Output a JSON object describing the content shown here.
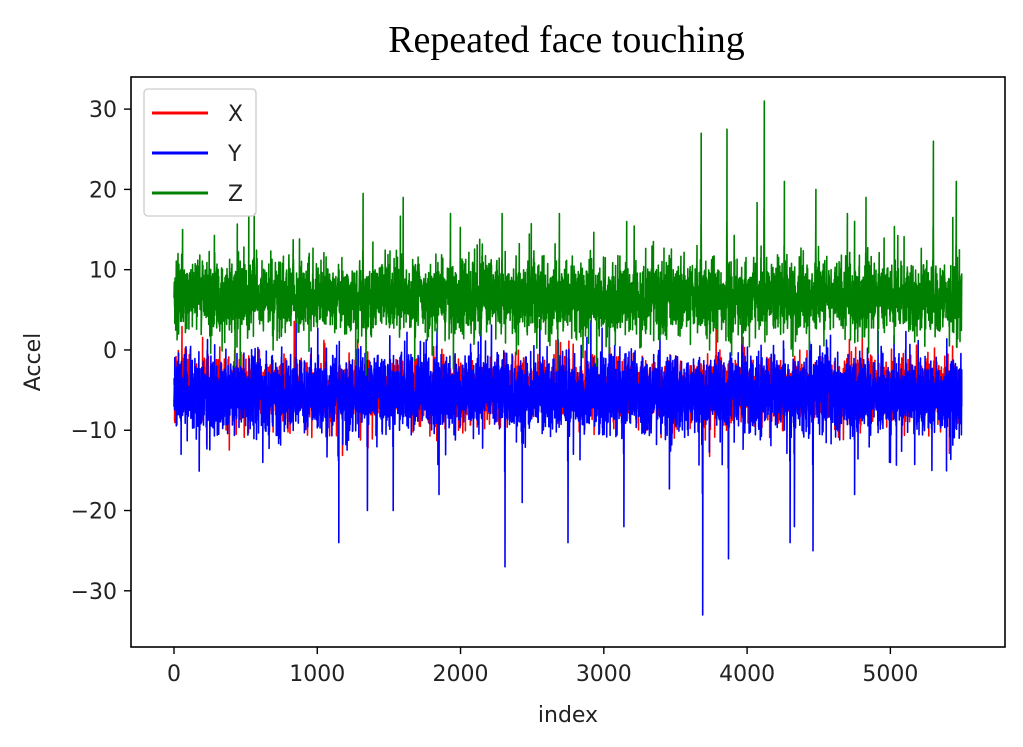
{
  "chart_data": {
    "type": "line",
    "title": "Repeated face touching",
    "xlabel": "index",
    "ylabel": "Accel",
    "xlim": [
      -300,
      5800
    ],
    "ylim": [
      -37,
      34
    ],
    "xticks": [
      0,
      1000,
      2000,
      3000,
      4000,
      5000
    ],
    "xtick_labels": [
      "0",
      "1000",
      "2000",
      "3000",
      "4000",
      "5000"
    ],
    "yticks": [
      30,
      20,
      10,
      0,
      -10,
      -20,
      -30
    ],
    "ytick_labels": [
      "30",
      "20",
      "10",
      "0",
      "−10",
      "−20",
      "−30"
    ],
    "grid": false,
    "legend_position": "top-left",
    "n_points": 5500,
    "series": [
      {
        "name": "X",
        "color": "#ff0000",
        "baseline": -5,
        "noise": 2.4,
        "spikes": [
          [
            0,
            -3.5
          ],
          [
            3300,
            -10
          ],
          [
            4600,
            -9
          ],
          [
            5490,
            -8
          ]
        ]
      },
      {
        "name": "Y",
        "color": "#0000ff",
        "baseline": -5.5,
        "noise": 3,
        "spikes": [
          [
            0,
            -7
          ],
          [
            50,
            -13
          ],
          [
            620,
            -14
          ],
          [
            1150,
            -24
          ],
          [
            1350,
            -20
          ],
          [
            1530,
            -20
          ],
          [
            1850,
            -18
          ],
          [
            2310,
            -27
          ],
          [
            2430,
            -19
          ],
          [
            2750,
            -24
          ],
          [
            3140,
            -22
          ],
          [
            3690,
            -33
          ],
          [
            3870,
            -26
          ],
          [
            4300,
            -24
          ],
          [
            4330,
            -22
          ],
          [
            4460,
            -25
          ],
          [
            4750,
            -18
          ],
          [
            5000,
            -14
          ],
          [
            5290,
            -15
          ],
          [
            5480,
            -11
          ]
        ]
      },
      {
        "name": "Z",
        "color": "#008000",
        "baseline": 6.5,
        "noise": 2.9,
        "spikes": [
          [
            0,
            6.5
          ],
          [
            60,
            15
          ],
          [
            560,
            17
          ],
          [
            1320,
            19.5
          ],
          [
            1600,
            19
          ],
          [
            1930,
            17
          ],
          [
            2290,
            17
          ],
          [
            2690,
            17
          ],
          [
            3160,
            16
          ],
          [
            3680,
            27
          ],
          [
            3860,
            27.5
          ],
          [
            4120,
            31
          ],
          [
            4260,
            21
          ],
          [
            4480,
            20
          ],
          [
            4700,
            17
          ],
          [
            4830,
            19
          ],
          [
            5300,
            26
          ],
          [
            5460,
            21
          ]
        ]
      }
    ]
  }
}
